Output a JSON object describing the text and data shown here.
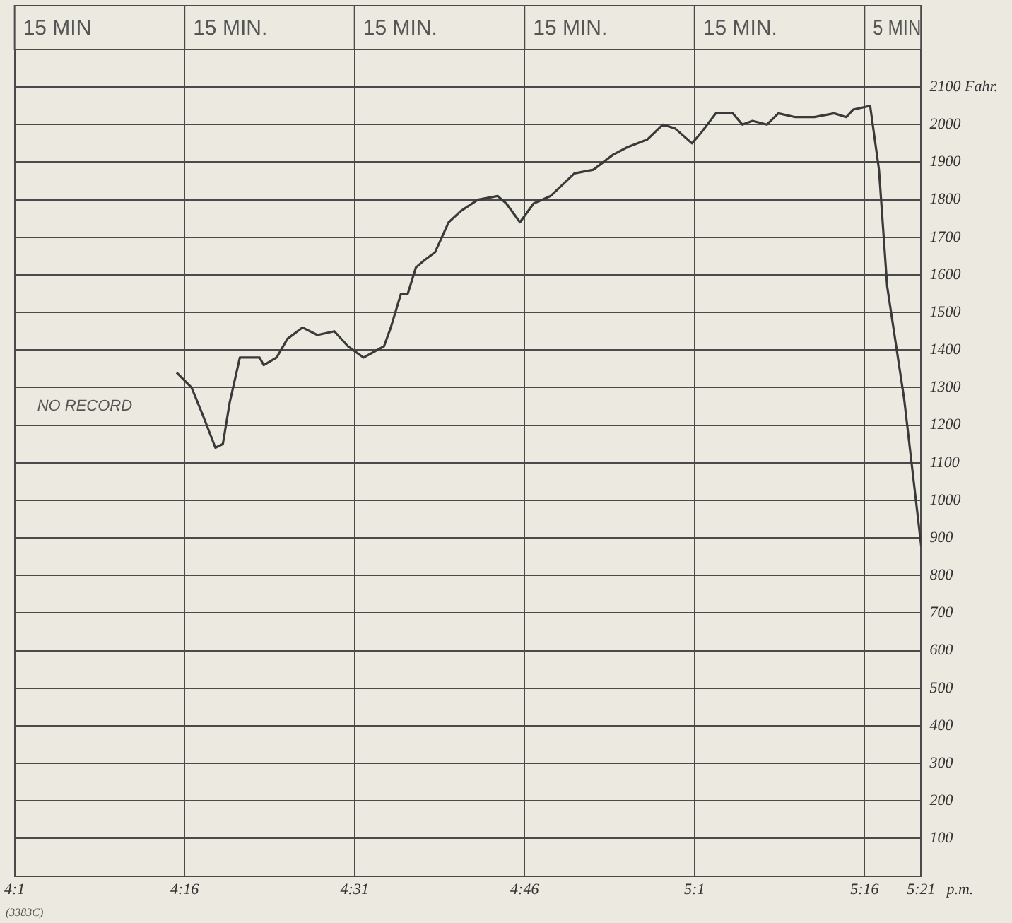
{
  "chart_data": {
    "type": "line",
    "x": [
      4.255,
      4.277,
      4.295,
      4.312,
      4.323,
      4.333,
      4.348,
      4.377,
      4.383,
      4.402,
      4.418,
      4.44,
      4.462,
      4.487,
      4.507,
      4.53,
      4.56,
      4.57,
      4.585,
      4.595,
      4.607,
      4.62,
      4.635,
      4.655,
      4.673,
      4.698,
      4.727,
      4.74,
      4.76,
      4.78,
      4.805,
      4.84,
      4.868,
      4.897,
      4.918,
      4.947,
      4.97,
      4.988,
      5.013,
      5.027,
      5.048,
      5.073,
      5.087,
      5.102,
      5.123,
      5.14,
      5.165,
      5.193,
      5.222,
      5.24,
      5.25,
      5.275,
      5.288,
      5.3,
      5.325,
      5.35
    ],
    "series": [
      {
        "color": "#3a3a3a",
        "values": [
          1340,
          1300,
          1220,
          1140,
          1150,
          1260,
          1380,
          1380,
          1360,
          1380,
          1430,
          1460,
          1440,
          1450,
          1410,
          1380,
          1410,
          1460,
          1550,
          1550,
          1620,
          1640,
          1660,
          1740,
          1770,
          1800,
          1810,
          1790,
          1740,
          1790,
          1810,
          1870,
          1880,
          1920,
          1940,
          1960,
          2000,
          1990,
          1950,
          1980,
          2030,
          2030,
          2000,
          2010,
          2000,
          2030,
          2020,
          2020,
          2030,
          2020,
          2040,
          2050,
          1880,
          1570,
          1270,
          880
        ]
      }
    ],
    "xlim": [
      4.0167,
      5.35
    ],
    "xticks": [
      {
        "value": 4.0167,
        "label": "4:1"
      },
      {
        "value": 4.2667,
        "label": "4:16"
      },
      {
        "value": 4.5167,
        "label": "4:31"
      },
      {
        "value": 4.7667,
        "label": "4:46"
      },
      {
        "value": 5.0167,
        "label": "5:1"
      },
      {
        "value": 5.2667,
        "label": "5:16"
      },
      {
        "value": 5.35,
        "label": "5:21"
      }
    ],
    "ylim": [
      0,
      2200
    ],
    "yticks": [
      100,
      200,
      300,
      400,
      500,
      600,
      700,
      800,
      900,
      1000,
      1100,
      1200,
      1300,
      1400,
      1500,
      1600,
      1700,
      1800,
      1900,
      2000,
      {
        "value": 2100,
        "label": "2100 Fahr."
      }
    ],
    "grid": true,
    "legend": false,
    "marker": "none",
    "line_style": "solid",
    "annotations": [
      "15 MIN",
      "15 MIN.",
      "15 MIN.",
      "15 MIN.",
      "15 MIN.",
      "5 MIN",
      "NO RECORD",
      "(3383C)",
      "p.m."
    ]
  }
}
